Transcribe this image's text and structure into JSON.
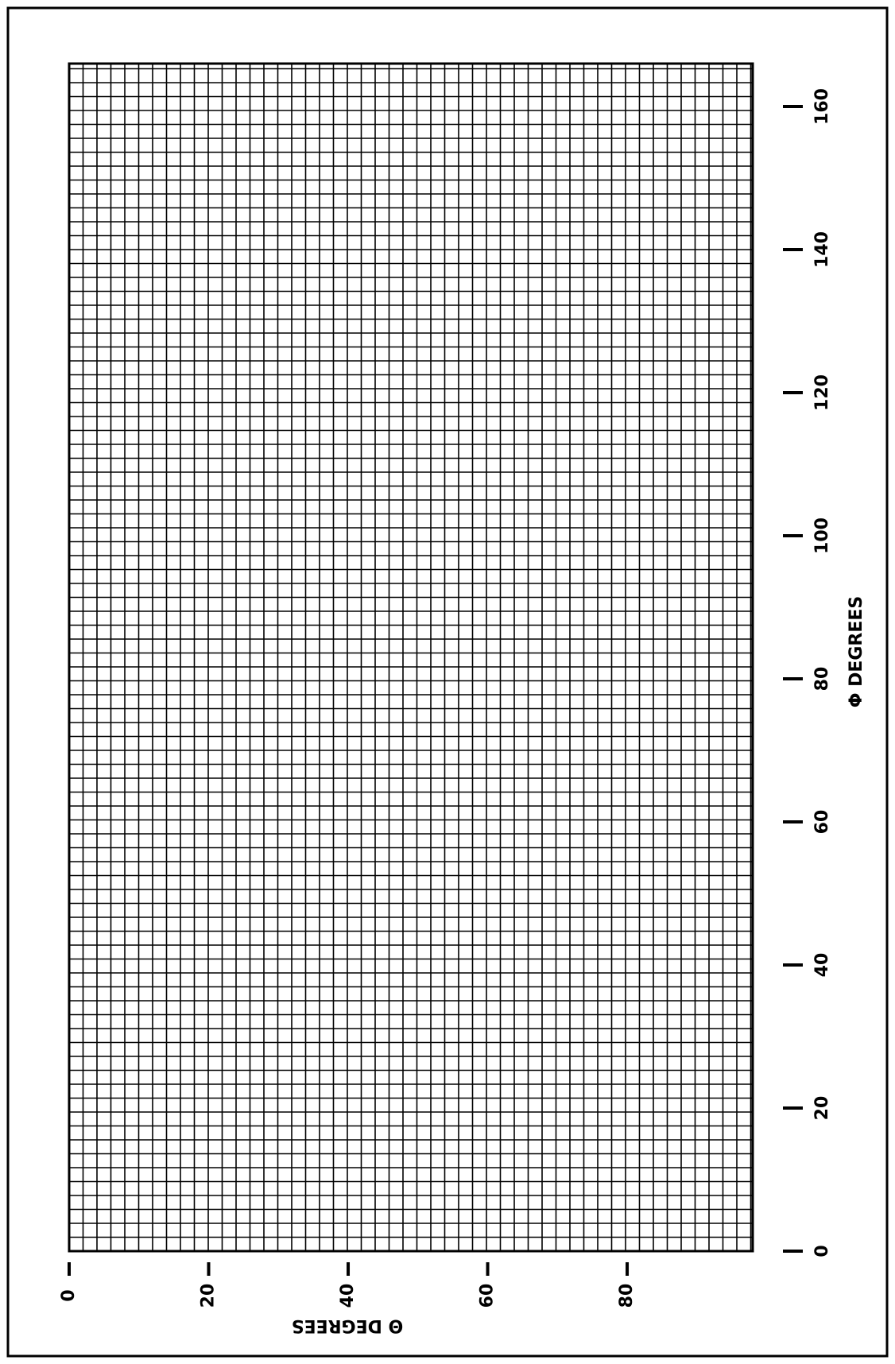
{
  "chart_data": {
    "type": "grid",
    "x_label": "Θ DEGREES",
    "y_label": "Φ DEGREES",
    "xlim": [
      0,
      98
    ],
    "xticks": [
      0,
      20,
      40,
      60,
      80
    ],
    "ylim": [
      0,
      166
    ],
    "yticks": [
      0,
      20,
      40,
      60,
      80,
      100,
      120,
      140,
      160
    ]
  }
}
